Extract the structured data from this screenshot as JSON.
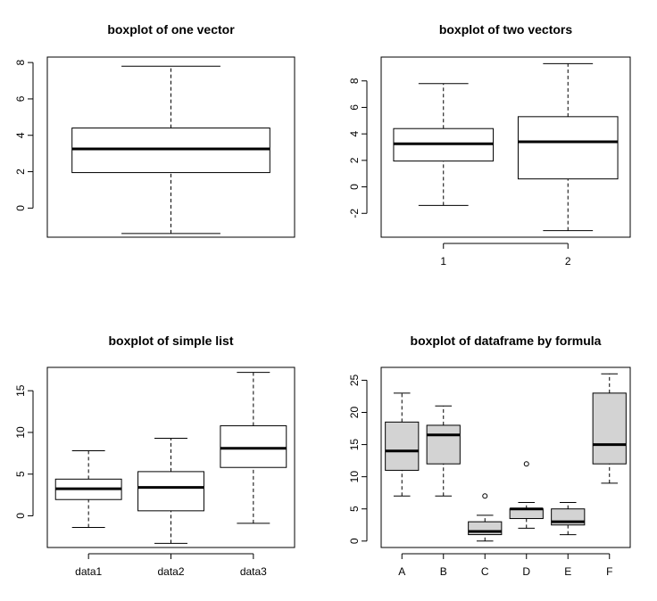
{
  "chart_data": [
    {
      "type": "boxplot",
      "title": "boxplot of one vector",
      "ylim": [
        -1.6,
        8.3
      ],
      "yticks": [
        0,
        2,
        4,
        6,
        8
      ],
      "show_x_axis": false,
      "box_fill": "#ffffff",
      "boxes": [
        {
          "label": "",
          "whisker_low": -1.4,
          "q1": 1.95,
          "median": 3.25,
          "q3": 4.4,
          "whisker_high": 7.8,
          "outliers": []
        }
      ]
    },
    {
      "type": "boxplot",
      "title": "boxplot of two vectors",
      "ylim": [
        -3.8,
        9.8
      ],
      "yticks": [
        -2,
        0,
        2,
        4,
        6,
        8
      ],
      "show_x_axis": true,
      "box_fill": "#ffffff",
      "boxes": [
        {
          "label": "1",
          "whisker_low": -1.4,
          "q1": 1.95,
          "median": 3.25,
          "q3": 4.4,
          "whisker_high": 7.8,
          "outliers": []
        },
        {
          "label": "2",
          "whisker_low": -3.3,
          "q1": 0.6,
          "median": 3.4,
          "q3": 5.3,
          "whisker_high": 9.3,
          "outliers": []
        }
      ]
    },
    {
      "type": "boxplot",
      "title": "boxplot of simple list",
      "ylim": [
        -3.8,
        17.8
      ],
      "yticks": [
        0,
        5,
        10,
        15
      ],
      "show_x_axis": true,
      "box_fill": "#ffffff",
      "boxes": [
        {
          "label": "data1",
          "whisker_low": -1.4,
          "q1": 1.95,
          "median": 3.25,
          "q3": 4.4,
          "whisker_high": 7.8,
          "outliers": []
        },
        {
          "label": "data2",
          "whisker_low": -3.3,
          "q1": 0.6,
          "median": 3.4,
          "q3": 5.3,
          "whisker_high": 9.3,
          "outliers": []
        },
        {
          "label": "data3",
          "whisker_low": -0.9,
          "q1": 5.8,
          "median": 8.1,
          "q3": 10.8,
          "whisker_high": 17.2,
          "outliers": []
        }
      ]
    },
    {
      "type": "boxplot",
      "title": "boxplot of dataframe by formula",
      "ylim": [
        -1,
        27
      ],
      "yticks": [
        0,
        5,
        10,
        15,
        20,
        25
      ],
      "show_x_axis": true,
      "box_fill": "#d3d3d3",
      "boxes": [
        {
          "label": "A",
          "whisker_low": 7,
          "q1": 11,
          "median": 14,
          "q3": 18.5,
          "whisker_high": 23,
          "outliers": []
        },
        {
          "label": "B",
          "whisker_low": 7,
          "q1": 12,
          "median": 16.5,
          "q3": 18,
          "whisker_high": 21,
          "outliers": []
        },
        {
          "label": "C",
          "whisker_low": 0,
          "q1": 1,
          "median": 1.5,
          "q3": 3,
          "whisker_high": 4,
          "outliers": [
            7
          ]
        },
        {
          "label": "D",
          "whisker_low": 2,
          "q1": 3.5,
          "median": 5,
          "q3": 5,
          "whisker_high": 6,
          "outliers": [
            12
          ]
        },
        {
          "label": "E",
          "whisker_low": 1,
          "q1": 2.5,
          "median": 3,
          "q3": 5,
          "whisker_high": 6,
          "outliers": []
        },
        {
          "label": "F",
          "whisker_low": 9,
          "q1": 12,
          "median": 15,
          "q3": 23,
          "whisker_high": 26,
          "outliers": []
        }
      ]
    }
  ]
}
